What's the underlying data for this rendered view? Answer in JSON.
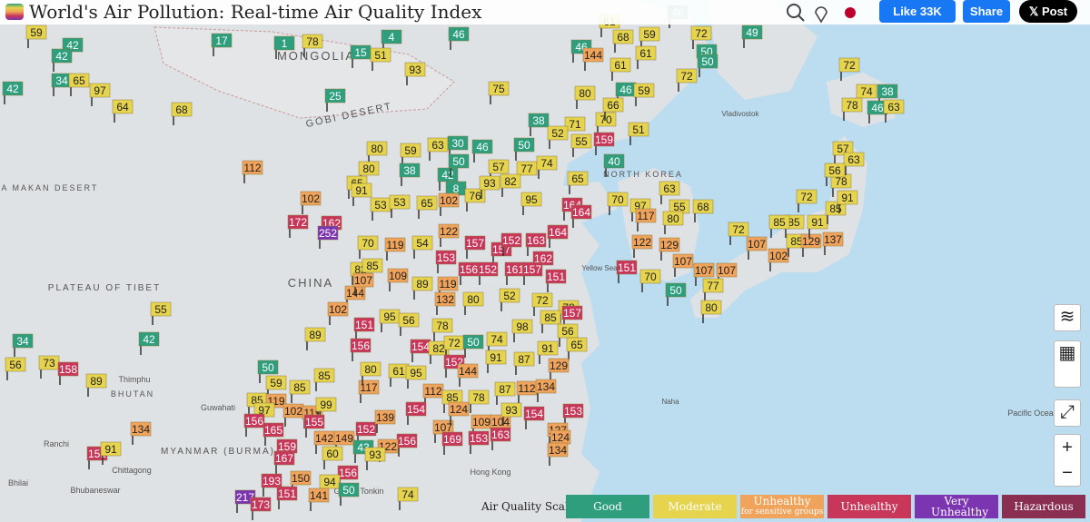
{
  "header": {
    "title": "World's Air Pollution: Real-time Air Quality Index",
    "like": "Like 33K",
    "share": "Share",
    "post": "Post"
  },
  "legend": {
    "title": "Air Quality Scale",
    "items": [
      {
        "label": "Good",
        "color": "#2e9e7c"
      },
      {
        "label": "Moderate",
        "color": "#e6d34e"
      },
      {
        "label": "Unhealthy",
        "sublabel": "for sensitive groups",
        "color": "#f0a35a"
      },
      {
        "label": "Unhealthy",
        "color": "#c8375a"
      },
      {
        "label": "Very Unhealthy",
        "color": "#7c35b0"
      },
      {
        "label": "Hazardous",
        "color": "#8b2f52"
      }
    ]
  },
  "map_labels": [
    "MONGOLIA",
    "GOBI DESERT",
    "CHINA",
    "TAKLA MAKAN DESERT",
    "PLATEAU OF TIBET",
    "NORTH KOREA",
    "Yellow Sea",
    "Pacific Ocean",
    "MYANMAR (BURMA)",
    "Hong Kong",
    "Naha",
    "Vladivostok",
    "Ranchi",
    "Chittagong",
    "Thimphu",
    "BHUTAN",
    "Guwahati",
    "Bhilai",
    "Gulf of Tonkin",
    "Bhubaneswar"
  ],
  "markers": [
    59,
    42,
    17,
    1,
    78,
    4,
    42,
    15,
    51,
    93,
    42,
    34,
    65,
    97,
    64,
    25,
    68,
    75,
    46,
    61,
    68,
    59,
    72,
    49,
    46,
    46,
    144,
    61,
    61,
    50,
    50,
    80,
    46,
    59,
    72,
    72,
    74,
    38,
    78,
    46,
    63,
    38,
    71,
    70,
    66,
    51,
    159,
    52,
    55,
    80,
    59,
    63,
    30,
    46,
    50,
    80,
    38,
    42,
    50,
    57,
    77,
    74,
    40,
    112,
    65,
    91,
    8,
    102,
    172,
    162,
    252,
    53,
    53,
    65,
    102,
    76,
    93,
    82,
    95,
    164,
    164,
    65,
    70,
    97,
    117,
    63,
    55,
    80,
    68,
    70,
    119,
    54,
    122,
    157,
    157,
    152,
    163,
    162,
    164,
    153,
    156,
    152,
    161,
    157,
    151,
    82,
    85,
    109,
    89,
    119,
    80,
    52,
    72,
    78,
    157,
    144,
    107,
    132,
    102,
    89,
    151,
    156,
    95,
    56,
    78,
    154,
    82,
    72,
    50,
    74,
    98,
    85,
    56,
    65,
    91,
    87,
    91,
    129,
    152,
    144,
    122,
    129,
    151,
    70,
    50,
    107,
    107,
    107,
    77,
    80,
    72,
    107,
    102,
    85,
    129,
    137,
    85,
    91,
    85,
    91,
    78,
    57,
    63,
    56,
    72,
    85,
    50,
    59,
    85,
    85,
    85,
    119,
    97,
    102,
    119,
    99,
    117,
    80,
    61,
    95,
    112,
    85,
    78,
    87,
    112,
    134,
    156,
    165,
    155,
    142,
    149,
    152,
    139,
    154,
    107,
    124,
    109,
    104,
    93,
    154,
    153,
    127,
    169,
    153,
    163,
    124,
    134,
    159,
    167,
    156,
    122,
    43,
    93,
    60,
    156,
    150,
    94,
    141,
    193,
    217,
    173,
    151,
    134,
    151,
    91,
    55,
    42,
    34,
    56,
    73,
    158,
    89,
    74,
    50
  ]
}
